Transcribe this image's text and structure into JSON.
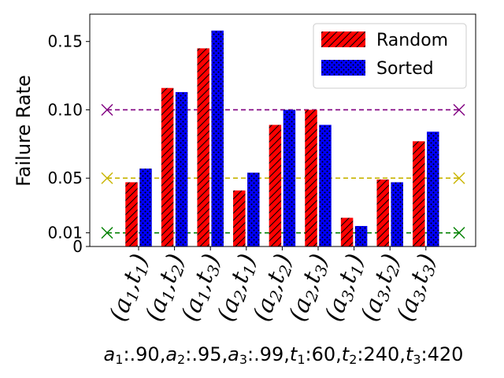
{
  "chart_data": {
    "type": "bar",
    "xlabel": "a₁:.90,a₂:.95,a₃:.99,t₁:60,t₂:240,t₃:420",
    "ylabel": "Failure Rate",
    "ylim": [
      0,
      0.17
    ],
    "yticks": [
      0,
      0.01,
      0.05,
      0.1,
      0.15
    ],
    "ytick_labels": [
      "0",
      "0.01",
      "0.05",
      "0.10",
      "0.15"
    ],
    "categories": [
      {
        "a": "a",
        "ai": "1",
        "t": "t",
        "ti": "1"
      },
      {
        "a": "a",
        "ai": "1",
        "t": "t",
        "ti": "2"
      },
      {
        "a": "a",
        "ai": "1",
        "t": "t",
        "ti": "3"
      },
      {
        "a": "a",
        "ai": "2",
        "t": "t",
        "ti": "1"
      },
      {
        "a": "a",
        "ai": "2",
        "t": "t",
        "ti": "2"
      },
      {
        "a": "a",
        "ai": "2",
        "t": "t",
        "ti": "3"
      },
      {
        "a": "a",
        "ai": "3",
        "t": "t",
        "ti": "1"
      },
      {
        "a": "a",
        "ai": "3",
        "t": "t",
        "ti": "2"
      },
      {
        "a": "a",
        "ai": "3",
        "t": "t",
        "ti": "3"
      }
    ],
    "series": [
      {
        "name": "Random",
        "color": "#ff0000",
        "hatch": "diagonal",
        "values": [
          0.047,
          0.116,
          0.145,
          0.041,
          0.089,
          0.1,
          0.021,
          0.049,
          0.077
        ]
      },
      {
        "name": "Sorted",
        "color": "#0000ff",
        "hatch": "dots",
        "values": [
          0.057,
          0.113,
          0.158,
          0.054,
          0.1,
          0.089,
          0.015,
          0.047,
          0.084
        ]
      }
    ],
    "reference_lines": [
      {
        "value": 0.1,
        "color": "#800080",
        "marker": "x"
      },
      {
        "value": 0.05,
        "color": "#c8b400",
        "marker": "x"
      },
      {
        "value": 0.01,
        "color": "#008000",
        "marker": "x"
      }
    ],
    "legend_position": "top-right",
    "grid": false
  }
}
